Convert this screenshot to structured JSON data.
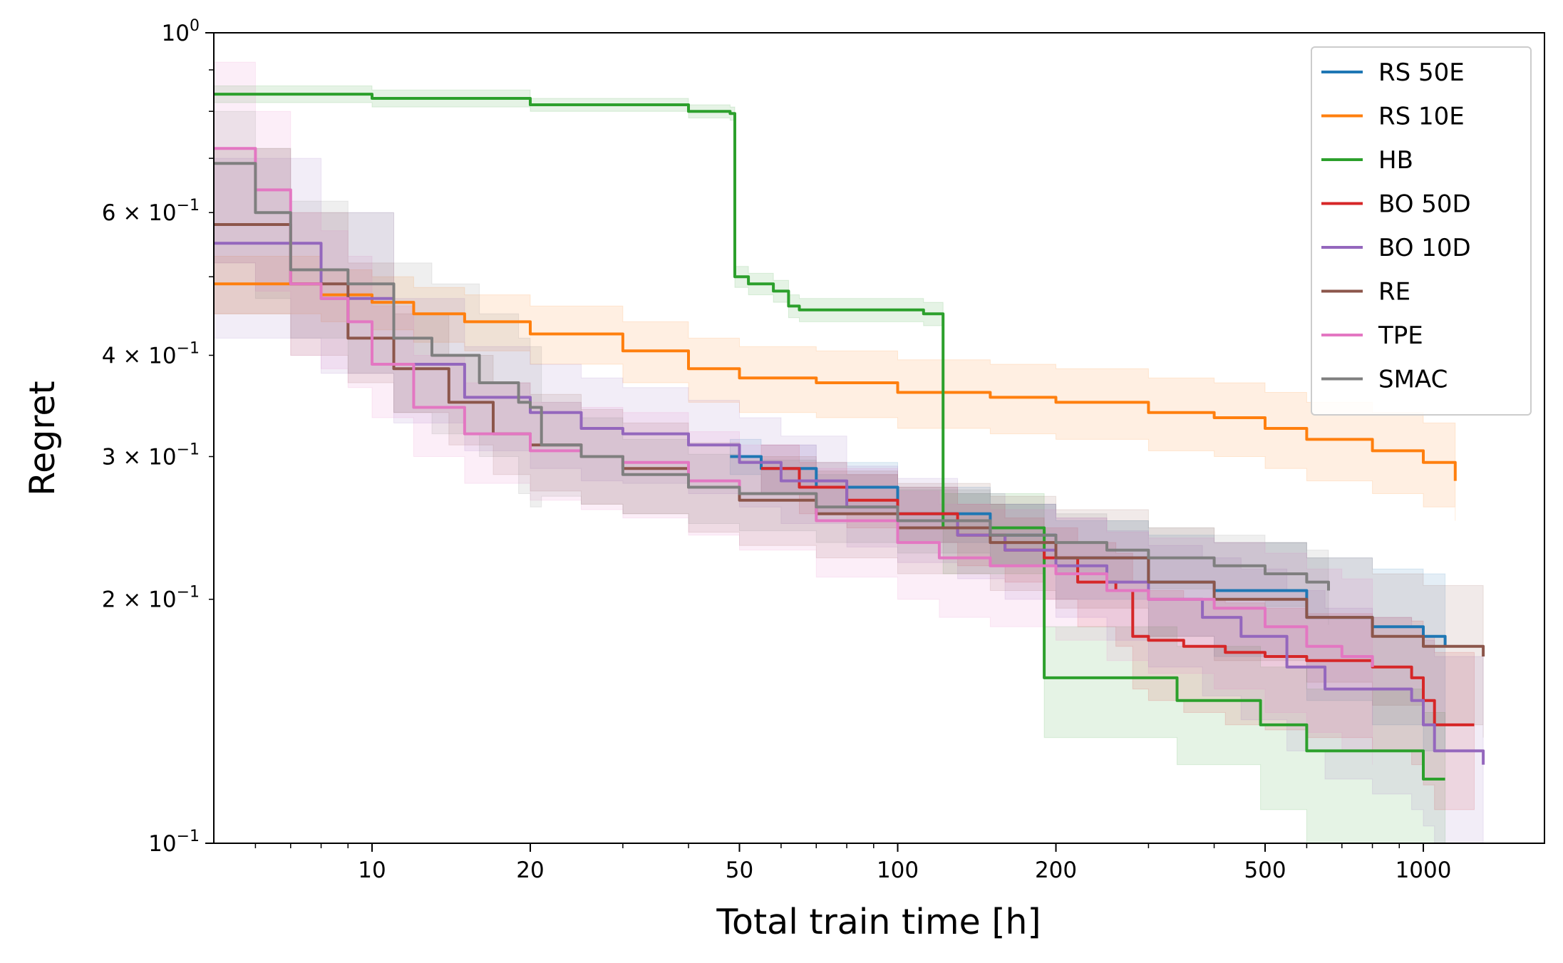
{
  "chart_data": {
    "type": "line",
    "xlabel": "Total train time [h]",
    "ylabel": "Regret",
    "xscale": "log",
    "yscale": "log",
    "xlim": [
      5,
      1700
    ],
    "ylim": [
      0.1,
      1.0
    ],
    "x_ticks": [
      {
        "value": 10,
        "label": "10"
      },
      {
        "value": 20,
        "label": "20"
      },
      {
        "value": 50,
        "label": "50"
      },
      {
        "value": 100,
        "label": "100"
      },
      {
        "value": 200,
        "label": "200"
      },
      {
        "value": 500,
        "label": "500"
      },
      {
        "value": 1000,
        "label": "1000"
      }
    ],
    "y_ticks": [
      {
        "value": 1.0,
        "mantissa": "",
        "exponent": "0"
      },
      {
        "value": 0.6,
        "mantissa": "6",
        "exponent": "−1"
      },
      {
        "value": 0.4,
        "mantissa": "4",
        "exponent": "−1"
      },
      {
        "value": 0.3,
        "mantissa": "3",
        "exponent": "−1"
      },
      {
        "value": 0.2,
        "mantissa": "2",
        "exponent": "−1"
      },
      {
        "value": 0.1,
        "mantissa": "",
        "exponent": "−1"
      }
    ],
    "legend_position": "top-right",
    "series": [
      {
        "name": "RS 50E",
        "color": "#1f77b4",
        "x": [
          48,
          55,
          70,
          100,
          150,
          200,
          300,
          400,
          600,
          800,
          1000,
          1100
        ],
        "y": [
          0.3,
          0.29,
          0.275,
          0.255,
          0.24,
          0.225,
          0.21,
          0.205,
          0.19,
          0.185,
          0.18,
          0.175
        ],
        "lower": [
          0.285,
          0.27,
          0.255,
          0.235,
          0.22,
          0.2,
          0.18,
          0.17,
          0.15,
          0.14,
          0.13,
          0.13
        ],
        "upper": [
          0.315,
          0.31,
          0.295,
          0.275,
          0.262,
          0.25,
          0.24,
          0.235,
          0.225,
          0.218,
          0.215,
          0.21
        ]
      },
      {
        "name": "RS 10E",
        "color": "#ff7f0e",
        "x": [
          5,
          8,
          10,
          12,
          15,
          20,
          30,
          40,
          50,
          70,
          100,
          150,
          200,
          300,
          400,
          500,
          600,
          800,
          1000,
          1150
        ],
        "y": [
          0.49,
          0.475,
          0.465,
          0.45,
          0.44,
          0.425,
          0.405,
          0.385,
          0.375,
          0.37,
          0.36,
          0.355,
          0.35,
          0.34,
          0.335,
          0.325,
          0.315,
          0.305,
          0.295,
          0.28
        ],
        "lower": [
          0.45,
          0.44,
          0.43,
          0.415,
          0.405,
          0.39,
          0.37,
          0.35,
          0.34,
          0.335,
          0.325,
          0.32,
          0.315,
          0.305,
          0.3,
          0.29,
          0.28,
          0.27,
          0.26,
          0.25
        ],
        "upper": [
          0.53,
          0.51,
          0.5,
          0.485,
          0.475,
          0.46,
          0.44,
          0.42,
          0.41,
          0.405,
          0.395,
          0.39,
          0.385,
          0.375,
          0.37,
          0.36,
          0.35,
          0.34,
          0.33,
          0.315
        ]
      },
      {
        "name": "HB",
        "color": "#2ca02c",
        "x": [
          5,
          10,
          20,
          40,
          48,
          49,
          52,
          58,
          62,
          65,
          100,
          112,
          122,
          125,
          180,
          190,
          330,
          340,
          480,
          490,
          580,
          600,
          960,
          1000,
          1100
        ],
        "y": [
          0.84,
          0.83,
          0.815,
          0.8,
          0.795,
          0.5,
          0.49,
          0.48,
          0.46,
          0.455,
          0.455,
          0.45,
          0.245,
          0.245,
          0.245,
          0.16,
          0.16,
          0.15,
          0.15,
          0.14,
          0.14,
          0.13,
          0.13,
          0.12,
          0.12
        ],
        "lower": [
          0.82,
          0.81,
          0.8,
          0.785,
          0.78,
          0.485,
          0.475,
          0.465,
          0.445,
          0.44,
          0.44,
          0.435,
          0.215,
          0.215,
          0.215,
          0.135,
          0.135,
          0.125,
          0.125,
          0.11,
          0.11,
          0.1,
          0.1,
          0.095,
          0.095
        ],
        "upper": [
          0.86,
          0.85,
          0.83,
          0.815,
          0.81,
          0.515,
          0.505,
          0.495,
          0.475,
          0.47,
          0.47,
          0.465,
          0.27,
          0.27,
          0.27,
          0.185,
          0.185,
          0.175,
          0.175,
          0.165,
          0.165,
          0.155,
          0.155,
          0.145,
          0.145
        ]
      },
      {
        "name": "BO 50D",
        "color": "#d62728",
        "x": [
          55,
          65,
          80,
          100,
          130,
          160,
          190,
          220,
          260,
          280,
          300,
          350,
          420,
          500,
          600,
          800,
          950,
          1000,
          1050,
          1250
        ],
        "y": [
          0.29,
          0.275,
          0.265,
          0.255,
          0.24,
          0.23,
          0.225,
          0.21,
          0.205,
          0.18,
          0.178,
          0.175,
          0.172,
          0.17,
          0.168,
          0.165,
          0.16,
          0.15,
          0.14,
          0.14
        ],
        "lower": [
          0.27,
          0.255,
          0.245,
          0.235,
          0.22,
          0.21,
          0.2,
          0.185,
          0.175,
          0.155,
          0.15,
          0.145,
          0.14,
          0.138,
          0.135,
          0.13,
          0.125,
          0.118,
          0.11,
          0.11
        ],
        "upper": [
          0.31,
          0.295,
          0.285,
          0.275,
          0.262,
          0.252,
          0.245,
          0.235,
          0.228,
          0.21,
          0.205,
          0.2,
          0.198,
          0.195,
          0.192,
          0.19,
          0.188,
          0.18,
          0.172,
          0.172
        ]
      },
      {
        "name": "BO 10D",
        "color": "#9467bd",
        "x": [
          5,
          8,
          11,
          15,
          20,
          25,
          30,
          40,
          50,
          60,
          80,
          100,
          130,
          160,
          200,
          250,
          300,
          380,
          450,
          550,
          650,
          800,
          950,
          1000,
          1050,
          1300
        ],
        "y": [
          0.55,
          0.47,
          0.39,
          0.355,
          0.34,
          0.325,
          0.32,
          0.31,
          0.295,
          0.28,
          0.26,
          0.25,
          0.24,
          0.23,
          0.22,
          0.21,
          0.2,
          0.19,
          0.18,
          0.165,
          0.155,
          0.155,
          0.15,
          0.14,
          0.13,
          0.125
        ],
        "lower": [
          0.42,
          0.38,
          0.33,
          0.305,
          0.29,
          0.28,
          0.278,
          0.27,
          0.26,
          0.248,
          0.232,
          0.222,
          0.212,
          0.2,
          0.19,
          0.178,
          0.165,
          0.152,
          0.142,
          0.13,
          0.12,
          0.115,
          0.11,
          0.105,
          0.1,
          0.098
        ],
        "upper": [
          0.7,
          0.6,
          0.47,
          0.41,
          0.39,
          0.375,
          0.365,
          0.352,
          0.335,
          0.318,
          0.292,
          0.282,
          0.27,
          0.262,
          0.252,
          0.243,
          0.233,
          0.225,
          0.218,
          0.205,
          0.195,
          0.19,
          0.185,
          0.178,
          0.17,
          0.165
        ]
      },
      {
        "name": "RE",
        "color": "#8c564b",
        "x": [
          5,
          7,
          9,
          11,
          14,
          17,
          20,
          25,
          30,
          40,
          50,
          70,
          100,
          150,
          200,
          300,
          400,
          600,
          800,
          1000,
          1300
        ],
        "y": [
          0.58,
          0.49,
          0.42,
          0.385,
          0.35,
          0.32,
          0.31,
          0.3,
          0.29,
          0.275,
          0.265,
          0.255,
          0.245,
          0.235,
          0.225,
          0.21,
          0.2,
          0.19,
          0.18,
          0.175,
          0.17
        ],
        "lower": [
          0.45,
          0.4,
          0.37,
          0.34,
          0.31,
          0.285,
          0.272,
          0.262,
          0.255,
          0.242,
          0.233,
          0.225,
          0.215,
          0.205,
          0.195,
          0.18,
          0.168,
          0.158,
          0.148,
          0.14,
          0.135
        ],
        "upper": [
          0.72,
          0.6,
          0.52,
          0.45,
          0.4,
          0.37,
          0.358,
          0.343,
          0.33,
          0.312,
          0.3,
          0.288,
          0.278,
          0.268,
          0.258,
          0.245,
          0.235,
          0.225,
          0.215,
          0.208,
          0.2
        ]
      },
      {
        "name": "TPE",
        "color": "#e377c2",
        "x": [
          5,
          6,
          7,
          8,
          9,
          10,
          12,
          15,
          20,
          25,
          30,
          40,
          50,
          70,
          100,
          120,
          150,
          200,
          250,
          300,
          400,
          500,
          600,
          700,
          800
        ],
        "y": [
          0.72,
          0.64,
          0.49,
          0.47,
          0.44,
          0.39,
          0.345,
          0.32,
          0.305,
          0.3,
          0.295,
          0.28,
          0.27,
          0.25,
          0.235,
          0.225,
          0.22,
          0.215,
          0.205,
          0.2,
          0.195,
          0.185,
          0.175,
          0.17,
          0.165
        ],
        "lower": [
          0.52,
          0.48,
          0.4,
          0.385,
          0.365,
          0.335,
          0.3,
          0.278,
          0.265,
          0.258,
          0.252,
          0.24,
          0.23,
          0.213,
          0.2,
          0.19,
          0.185,
          0.178,
          0.168,
          0.162,
          0.155,
          0.145,
          0.137,
          0.13,
          0.125
        ],
        "upper": [
          0.92,
          0.8,
          0.6,
          0.57,
          0.53,
          0.46,
          0.4,
          0.37,
          0.35,
          0.345,
          0.34,
          0.322,
          0.31,
          0.29,
          0.272,
          0.262,
          0.258,
          0.252,
          0.242,
          0.238,
          0.235,
          0.228,
          0.218,
          0.212,
          0.208
        ]
      },
      {
        "name": "SMAC",
        "color": "#7f7f7f",
        "x": [
          5,
          6,
          7,
          9,
          11,
          13,
          16,
          19,
          20,
          21,
          25,
          30,
          40,
          50,
          70,
          100,
          150,
          200,
          250,
          300,
          400,
          500,
          600,
          660
        ],
        "y": [
          0.69,
          0.6,
          0.51,
          0.49,
          0.42,
          0.4,
          0.37,
          0.35,
          0.345,
          0.31,
          0.3,
          0.285,
          0.275,
          0.27,
          0.26,
          0.25,
          0.24,
          0.235,
          0.23,
          0.225,
          0.22,
          0.215,
          0.21,
          0.205
        ],
        "lower": [
          0.52,
          0.47,
          0.42,
          0.38,
          0.34,
          0.32,
          0.3,
          0.27,
          0.26,
          0.268,
          0.262,
          0.255,
          0.248,
          0.243,
          0.235,
          0.228,
          0.22,
          0.215,
          0.21,
          0.206,
          0.2,
          0.196,
          0.19,
          0.186
        ],
        "upper": [
          0.8,
          0.72,
          0.62,
          0.6,
          0.52,
          0.49,
          0.45,
          0.42,
          0.41,
          0.35,
          0.335,
          0.315,
          0.302,
          0.297,
          0.285,
          0.273,
          0.262,
          0.255,
          0.25,
          0.245,
          0.24,
          0.235,
          0.23,
          0.225
        ]
      }
    ]
  }
}
